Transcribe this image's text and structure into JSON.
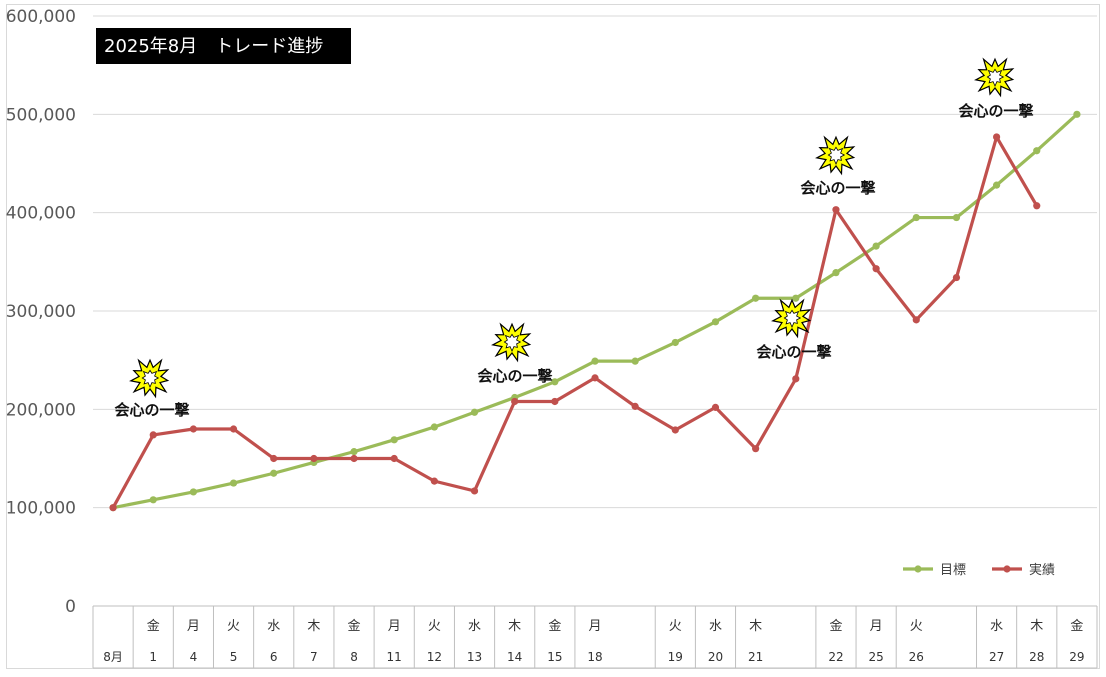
{
  "chart_data": {
    "type": "line",
    "title": "2025年8月　トレード進捗",
    "xlabel": "",
    "ylabel": "",
    "ylim": [
      0,
      600000
    ],
    "ytick_labels": [
      "0",
      "100,000",
      "200,000",
      "300,000",
      "400,000",
      "500,000",
      "600,000"
    ],
    "grid": "horizontal",
    "legend": "bottom-right",
    "categories": [
      {
        "top": "",
        "bottom": "8月"
      },
      {
        "top": "金",
        "bottom": "1"
      },
      {
        "top": "月",
        "bottom": "4"
      },
      {
        "top": "火",
        "bottom": "5"
      },
      {
        "top": "水",
        "bottom": "6"
      },
      {
        "top": "木",
        "bottom": "7"
      },
      {
        "top": "金",
        "bottom": "8"
      },
      {
        "top": "月",
        "bottom": "11"
      },
      {
        "top": "火",
        "bottom": "12"
      },
      {
        "top": "水",
        "bottom": "13"
      },
      {
        "top": "木",
        "bottom": "14"
      },
      {
        "top": "金",
        "bottom": "15"
      },
      {
        "top": "月",
        "bottom": "18"
      },
      {
        "top": "",
        "bottom": ""
      },
      {
        "top": "火",
        "bottom": "19"
      },
      {
        "top": "水",
        "bottom": "20"
      },
      {
        "top": "木",
        "bottom": "21"
      },
      {
        "top": "",
        "bottom": ""
      },
      {
        "top": "金",
        "bottom": "22"
      },
      {
        "top": "月",
        "bottom": "25"
      },
      {
        "top": "火",
        "bottom": "26"
      },
      {
        "top": "",
        "bottom": ""
      },
      {
        "top": "水",
        "bottom": "27"
      },
      {
        "top": "木",
        "bottom": "28"
      },
      {
        "top": "金",
        "bottom": "29"
      }
    ],
    "series": [
      {
        "name": "目標",
        "color": "#9BBB59",
        "values": [
          100000,
          108000,
          116000,
          125000,
          135000,
          146000,
          157000,
          169000,
          182000,
          197000,
          212000,
          228000,
          249000,
          249000,
          268000,
          289000,
          313000,
          313000,
          339000,
          366000,
          395000,
          395000,
          428000,
          463000,
          500000
        ]
      },
      {
        "name": "実績",
        "color": "#C0504D",
        "values": [
          100000,
          174000,
          180000,
          180000,
          150000,
          150000,
          150000,
          150000,
          127000,
          117000,
          208000,
          208000,
          232000,
          203000,
          179000,
          202000,
          160000,
          231000,
          403000,
          343000,
          291000,
          334000,
          477000,
          407000,
          null
        ]
      }
    ],
    "annotations": [
      {
        "text": "会心の一撃",
        "category_index": 1
      },
      {
        "text": "会心の一撃",
        "category_index": 10
      },
      {
        "text": "会心の一撃",
        "category_index": 17
      },
      {
        "text": "会心の一撃",
        "category_index": 18
      },
      {
        "text": "会心の一撃",
        "category_index": 22
      }
    ]
  }
}
